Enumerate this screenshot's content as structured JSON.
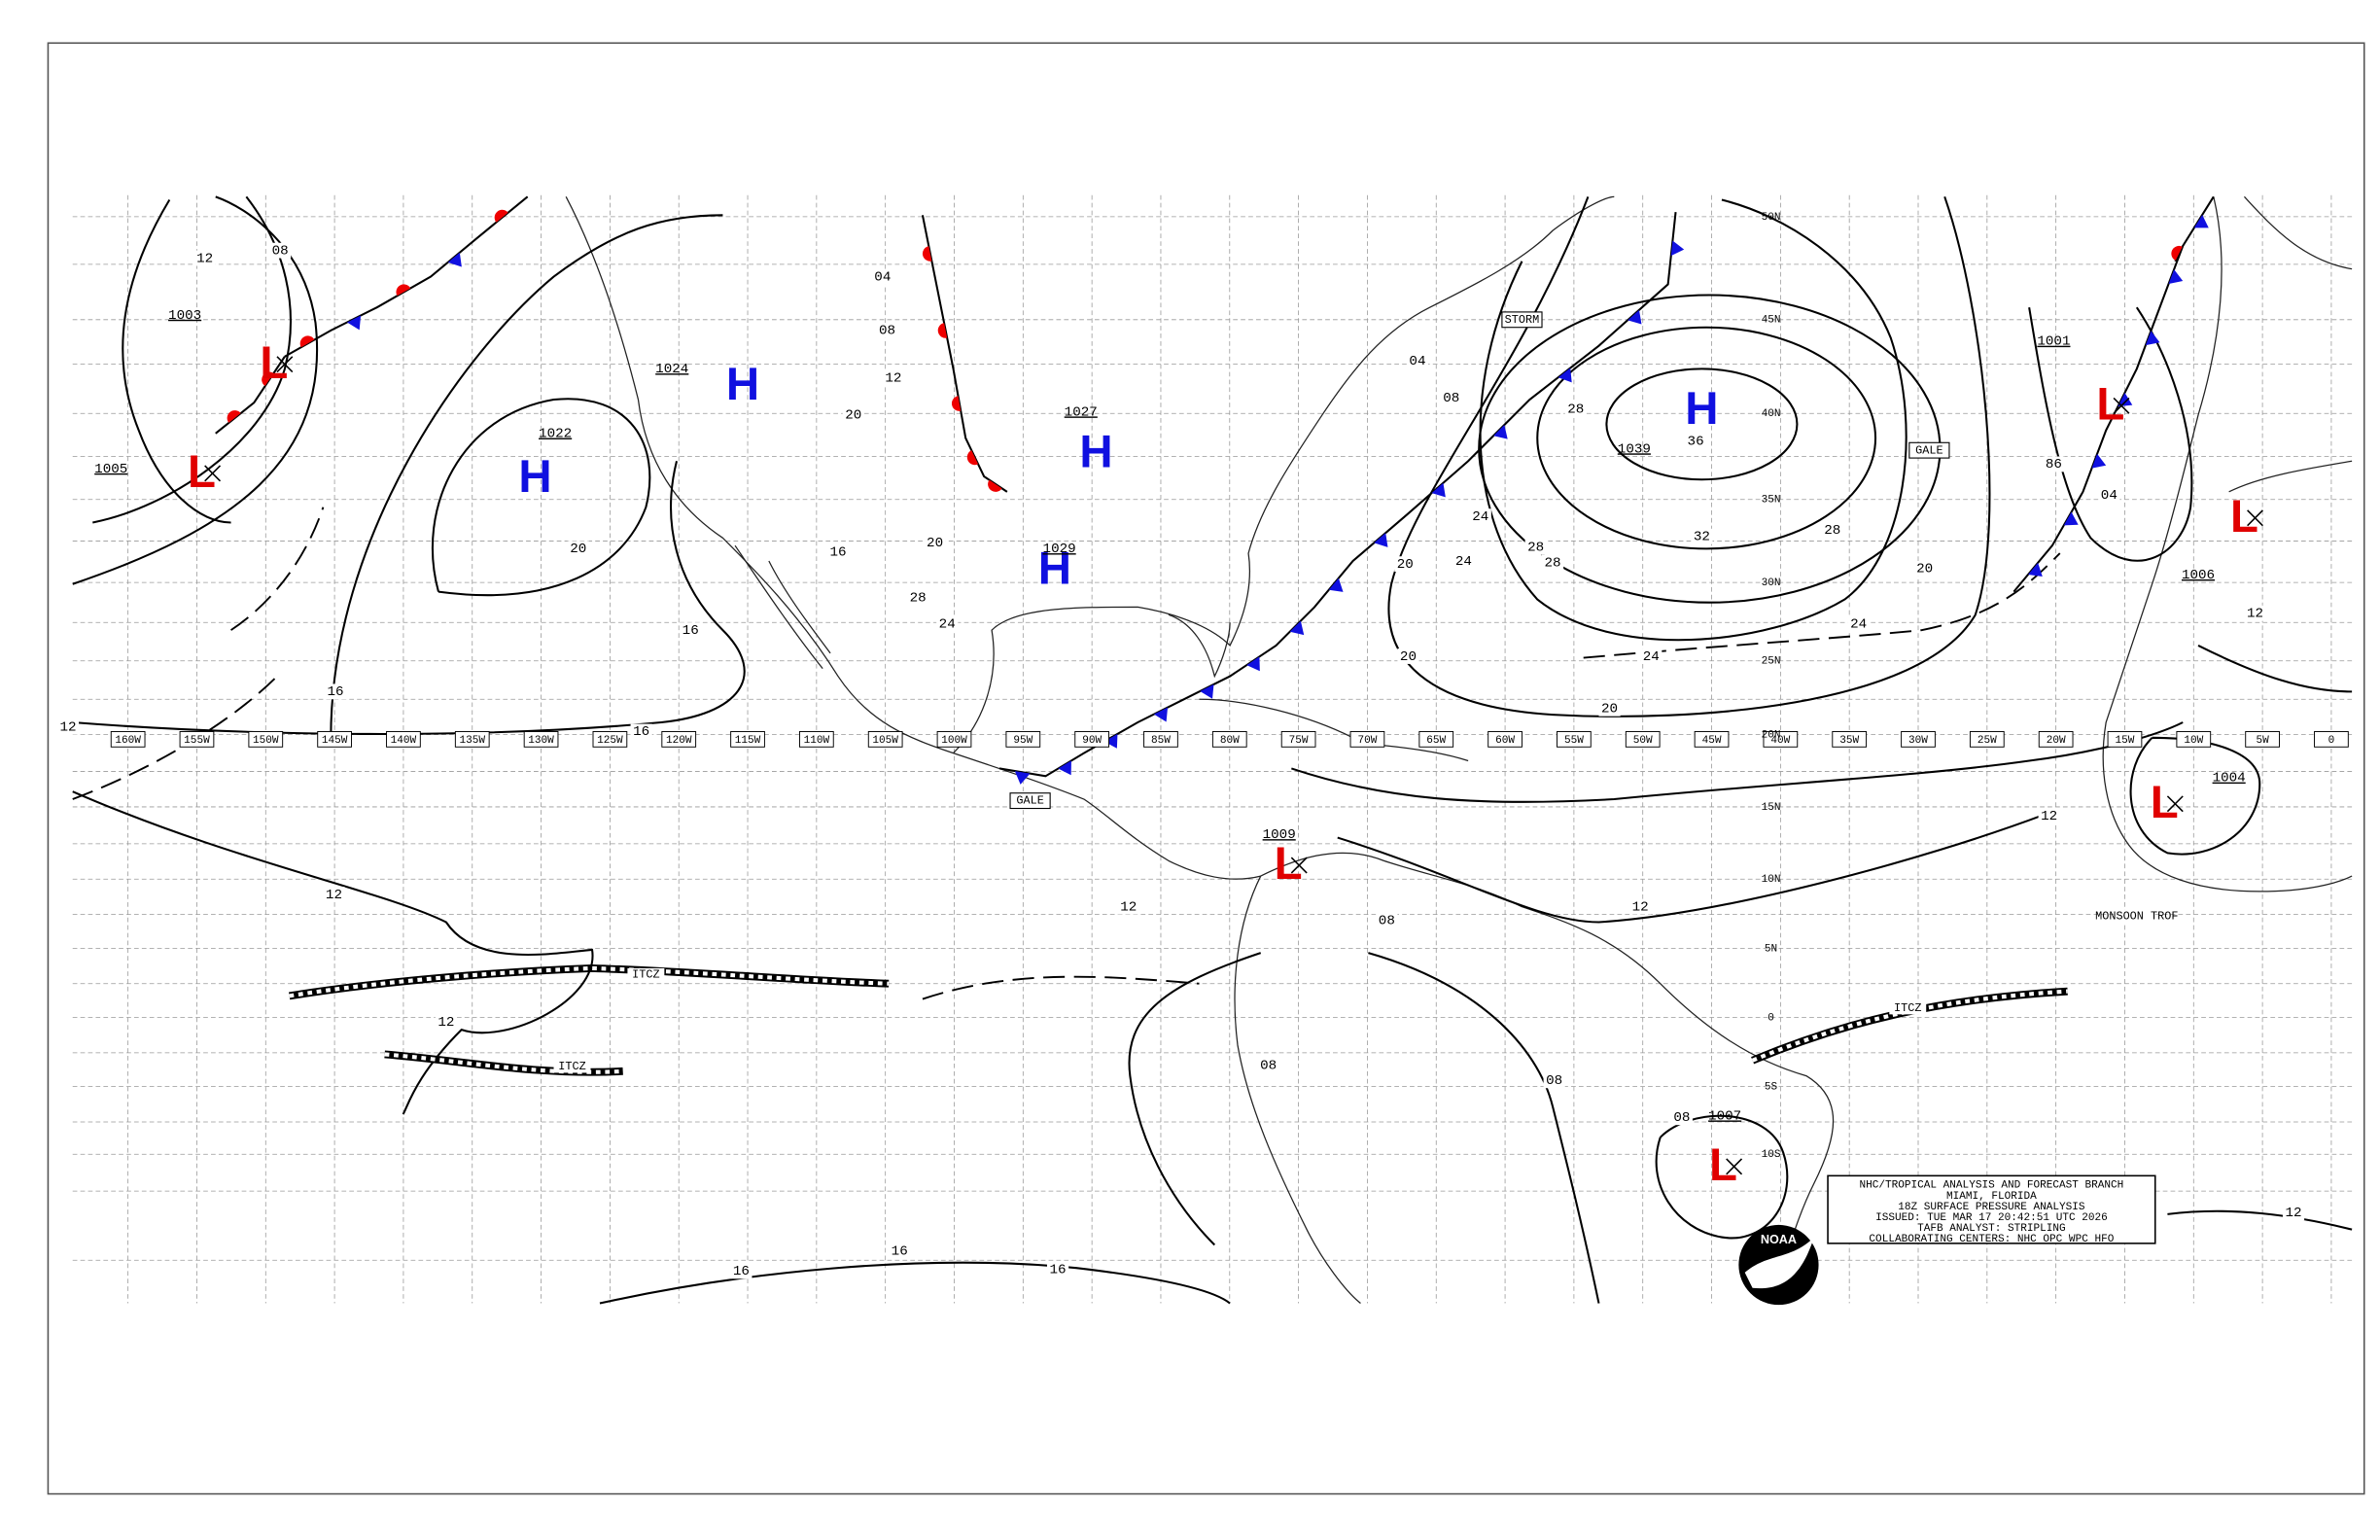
{
  "longitude_labels": [
    "160W",
    "155W",
    "150W",
    "145W",
    "140W",
    "135W",
    "130W",
    "125W",
    "120W",
    "115W",
    "110W",
    "105W",
    "100W",
    "95W",
    "90W",
    "85W",
    "80W",
    "75W",
    "70W",
    "65W",
    "60W",
    "55W",
    "50W",
    "45W",
    "40W",
    "35W",
    "30W",
    "25W",
    "20W",
    "15W",
    "10W",
    "5W",
    "0"
  ],
  "latitude_labels": [
    "50N",
    "45N",
    "40N",
    "35N",
    "30N",
    "25N",
    "20N",
    "15N",
    "10N",
    "5N",
    "0",
    "5S",
    "10S"
  ],
  "pressure_centers": [
    {
      "symbol": "L",
      "pressure": "1003"
    },
    {
      "symbol": "L",
      "pressure": "1005"
    },
    {
      "symbol": "H",
      "pressure": "1022"
    },
    {
      "symbol": "H",
      "pressure": "1024"
    },
    {
      "symbol": "H",
      "pressure": "1027"
    },
    {
      "symbol": "H",
      "pressure": "1029"
    },
    {
      "symbol": "H",
      "pressure": "1039"
    },
    {
      "symbol": "L",
      "pressure": "1009"
    },
    {
      "symbol": "L",
      "pressure": "1001"
    },
    {
      "symbol": "L",
      "pressure": "1006"
    },
    {
      "symbol": "L",
      "pressure": "1004"
    },
    {
      "symbol": "L",
      "pressure": "1007"
    }
  ],
  "isobar_labels": [
    "12",
    "08",
    "20",
    "16",
    "16",
    "16",
    "12",
    "12",
    "12",
    "12",
    "08",
    "08",
    "08",
    "16",
    "16",
    "16",
    "20",
    "20",
    "24",
    "24",
    "28",
    "28",
    "28",
    "32",
    "36",
    "28",
    "24",
    "24",
    "20",
    "20",
    "12",
    "12",
    "12",
    "12",
    "86",
    "04",
    "08",
    "04",
    "04",
    "08",
    "12",
    "20",
    "16",
    "20",
    "24",
    "28",
    "08"
  ],
  "feature_labels": [
    "ITCZ",
    "ITCZ",
    "ITCZ",
    "GALE",
    "GALE",
    "STORM",
    "MONSOON TROF"
  ],
  "info_box": {
    "lines": [
      "NHC/TROPICAL ANALYSIS AND FORECAST BRANCH",
      "MIAMI, FLORIDA",
      "18Z SURFACE PRESSURE ANALYSIS",
      "ISSUED: TUE MAR 17 20:42:51 UTC 2026",
      "TAFB ANALYST: STRIPLING",
      "COLLABORATING CENTERS: NHC OPC WPC HFO"
    ]
  },
  "logo": "NOAA"
}
